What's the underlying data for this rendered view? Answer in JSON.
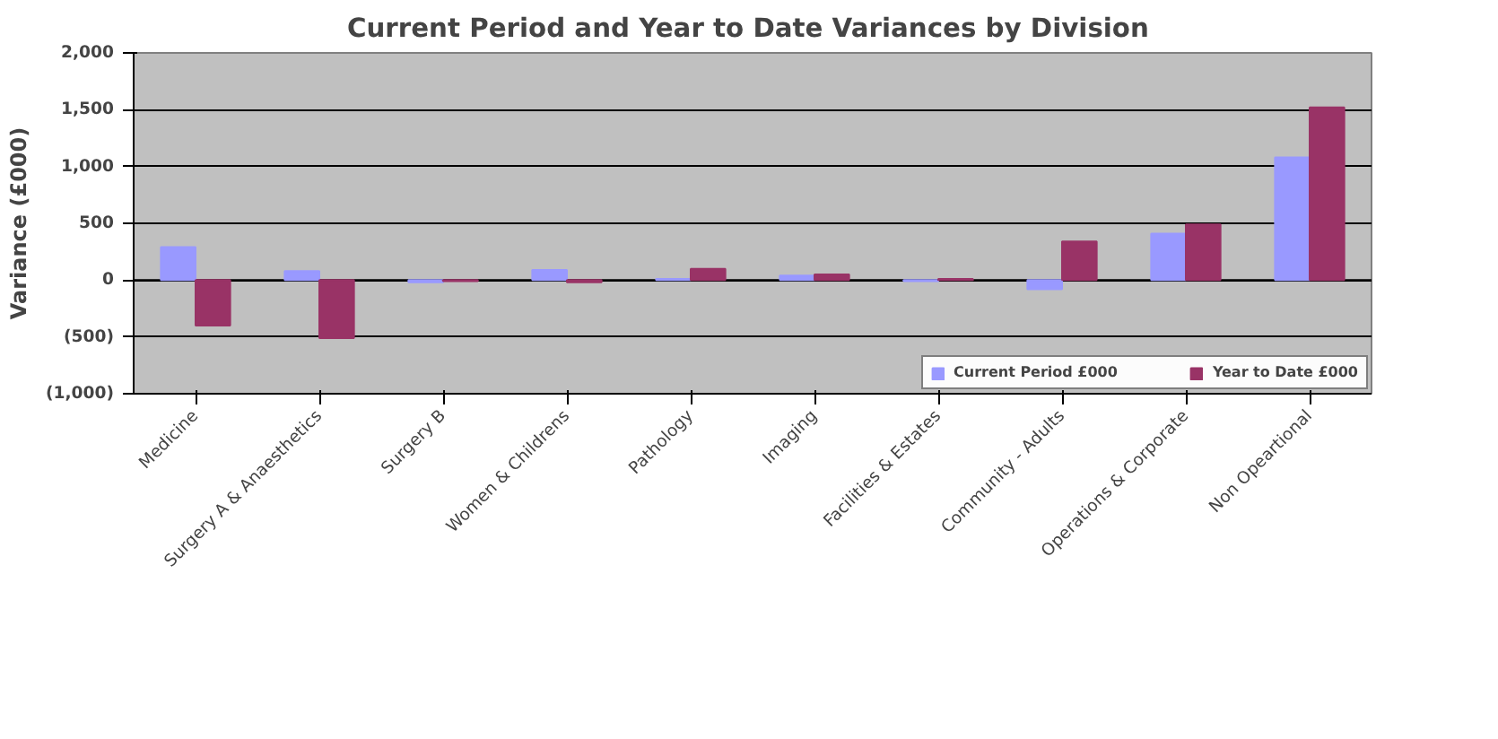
{
  "chart_data": {
    "type": "bar",
    "title": "Current Period and Year to Date  Variances by Division",
    "ylabel": "Variance (£000)",
    "categories": [
      "Medicine",
      "Surgery A & Anaesthetics",
      "Surgery B",
      "Women & Childrens",
      "Pathology",
      "Imaging",
      "Facilities & Estates",
      "Community - Adults",
      "Operations & Corporate",
      "Non Opeartional"
    ],
    "series": [
      {
        "name": "Current Period £000",
        "color": "#9999ff",
        "values": [
          290,
          80,
          -20,
          90,
          10,
          40,
          -10,
          -80,
          410,
          1080
        ]
      },
      {
        "name": "Year to Date £000",
        "color": "#993366",
        "values": [
          -400,
          -510,
          -10,
          -20,
          100,
          50,
          10,
          340,
          490,
          1520
        ]
      }
    ],
    "ylim": [
      -1000,
      2000
    ],
    "yticks": [
      {
        "value": -1000,
        "label": "(1,000)"
      },
      {
        "value": -500,
        "label": "(500)"
      },
      0,
      {
        "value": 500,
        "label": "500"
      },
      {
        "value": 1000,
        "label": "1,000"
      },
      {
        "value": 1500,
        "label": "1,500"
      },
      {
        "value": 2000,
        "label": "2,000"
      }
    ],
    "grid": "y",
    "legend": "bottom"
  }
}
